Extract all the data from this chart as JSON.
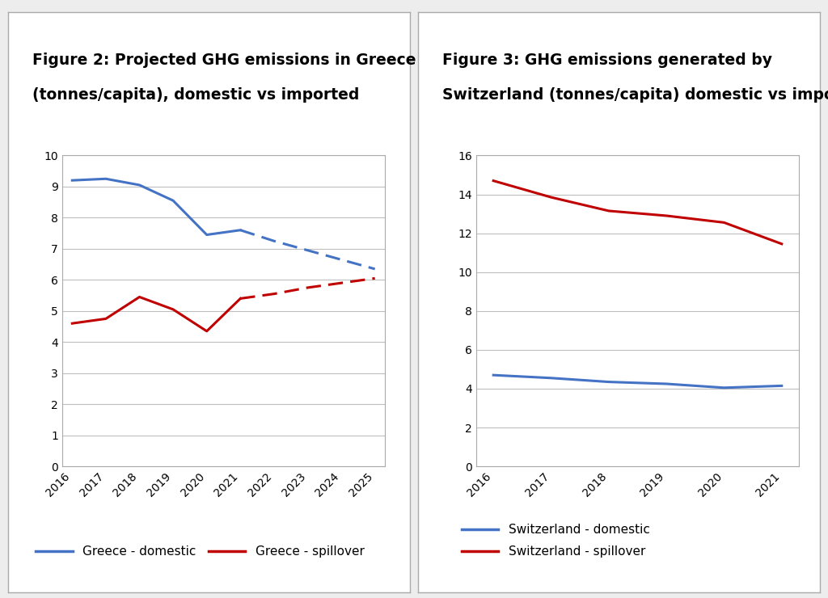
{
  "fig2_title_line1": "Figure 2: Projected GHG emissions in Greece",
  "fig2_title_line2": "(tonnes/capita), domestic vs imported",
  "fig3_title_line1": "Figure 3: GHG emissions generated by",
  "fig3_title_line2": "Switzerland (tonnes/capita) domestic vs imported",
  "greece_years": [
    2016,
    2017,
    2018,
    2019,
    2020,
    2021,
    2022,
    2023,
    2024,
    2025
  ],
  "greece_domestic": [
    9.2,
    9.25,
    9.05,
    8.55,
    7.45,
    7.6,
    7.25,
    6.95,
    6.65,
    6.35
  ],
  "greece_spillover": [
    4.6,
    4.75,
    5.45,
    5.05,
    4.35,
    5.4,
    5.55,
    5.75,
    5.9,
    6.05
  ],
  "greece_solid_cutoff_idx": 5,
  "swiss_years": [
    2016,
    2017,
    2018,
    2019,
    2020,
    2021
  ],
  "swiss_domestic": [
    4.7,
    4.55,
    4.35,
    4.25,
    4.05,
    4.15
  ],
  "swiss_spillover": [
    14.7,
    13.85,
    13.15,
    12.9,
    12.55,
    11.45
  ],
  "domestic_color": "#4472C4",
  "spillover_color": "#C00000",
  "fig2_ylim": [
    0,
    10
  ],
  "fig2_yticks": [
    0,
    1,
    2,
    3,
    4,
    5,
    6,
    7,
    8,
    9,
    10
  ],
  "fig3_ylim": [
    0,
    16
  ],
  "fig3_yticks": [
    0,
    2,
    4,
    6,
    8,
    10,
    12,
    14,
    16
  ],
  "panel_bg": "#FFFFFF",
  "outer_bg": "#EDEDED",
  "chart_bg": "#FFFFFF",
  "title_fontsize": 13.5,
  "legend_fontsize": 11,
  "tick_fontsize": 10,
  "line_width": 2.2,
  "grid_color": "#BEBEBE",
  "grid_alpha": 1.0,
  "border_color": "#AAAAAA"
}
